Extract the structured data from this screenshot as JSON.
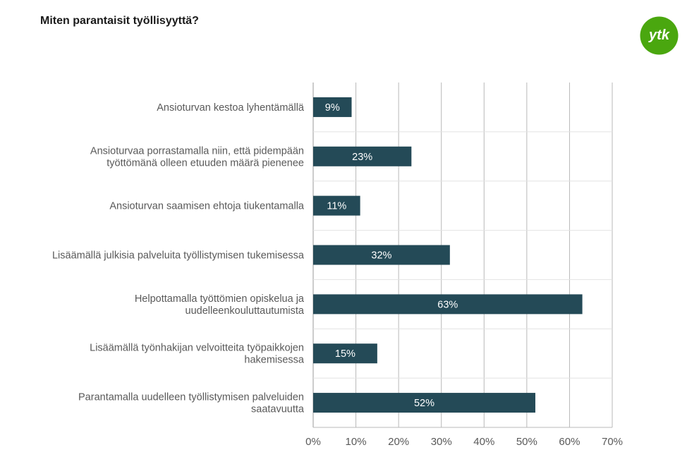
{
  "title": "Miten parantaisit työllisyyttä?",
  "logo": {
    "text": "ytk",
    "color": "#4aa70f",
    "icon": "ytk-logo"
  },
  "chart_data": {
    "type": "bar",
    "orientation": "horizontal",
    "title": "Miten parantaisit työllisyyttä?",
    "categories": [
      [
        "Ansioturvan kestoa lyhentämällä"
      ],
      [
        "Ansioturvaa porrastamalla niin, että pidempään",
        "työttömänä olleen etuuden määrä pienenee"
      ],
      [
        "Ansioturvan saamisen ehtoja tiukentamalla"
      ],
      [
        "Lisäämällä julkisia palveluita työllistymisen tukemisessa"
      ],
      [
        "Helpottamalla työttömien opiskelua ja",
        "uudelleenkouluttautumista"
      ],
      [
        "Lisäämällä työnhakijan velvoitteita työpaikkojen",
        "hakemisessa"
      ],
      [
        "Parantamalla uudelleen työllistymisen palveluiden",
        "saatavuutta"
      ]
    ],
    "values": [
      9,
      23,
      11,
      32,
      63,
      15,
      52
    ],
    "data_labels": [
      "9%",
      "23%",
      "11%",
      "32%",
      "63%",
      "15%",
      "52%"
    ],
    "xlim": [
      0,
      70
    ],
    "ticks": [
      0,
      10,
      20,
      30,
      40,
      50,
      60,
      70
    ],
    "tick_labels": [
      "0%",
      "10%",
      "20%",
      "30%",
      "40%",
      "50%",
      "60%",
      "70%"
    ],
    "bar_color": "#244a57",
    "grid": true,
    "legend": "none"
  }
}
